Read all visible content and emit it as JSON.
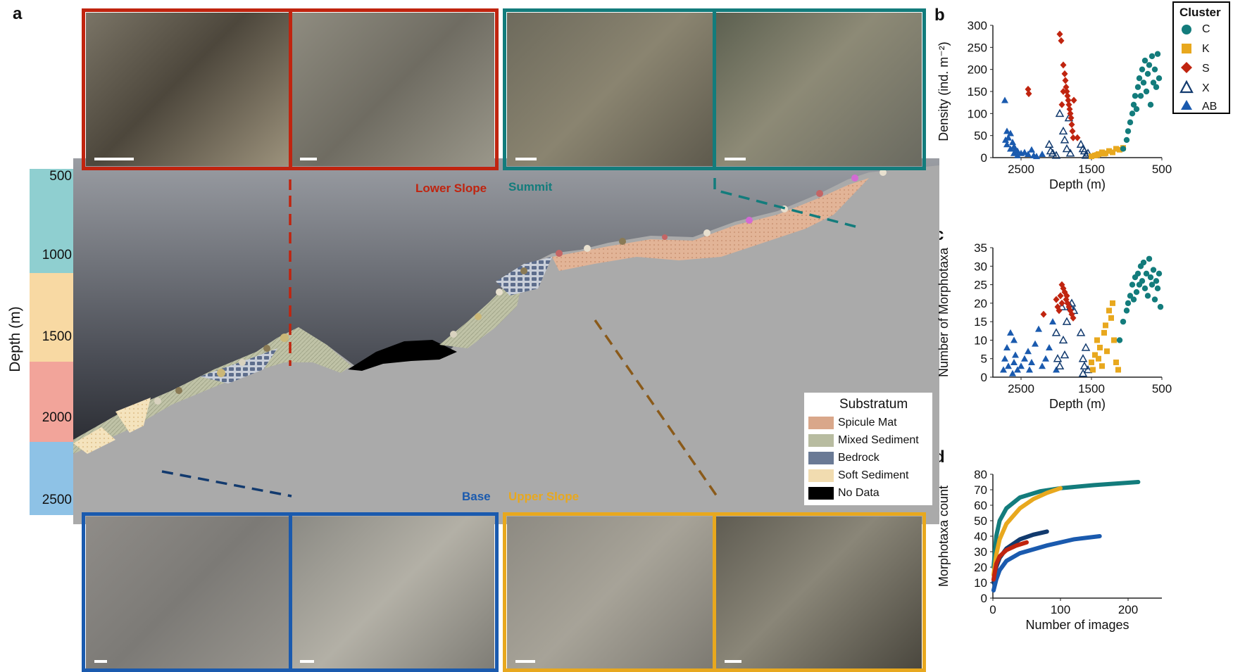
{
  "panels": {
    "a": "a",
    "b": "b",
    "c": "c",
    "d": "d"
  },
  "depth_axis": {
    "label": "Depth (m)",
    "ticks": [
      "500",
      "1000",
      "1500",
      "2000",
      "2500"
    ]
  },
  "regions": {
    "lower_slope": "Lower Slope",
    "summit": "Summit",
    "base": "Base",
    "upper_slope": "Upper Slope"
  },
  "colors": {
    "lower_slope": "#c0240f",
    "summit": "#137c7c",
    "base": "#1a5aae",
    "upper_slope": "#e8a81e",
    "band_summit": "#8fcfd0",
    "band_upper": "#f8d9a3",
    "band_lower": "#f2a49a",
    "band_base": "#8ec2e6"
  },
  "substratum_legend": {
    "title": "Substratum",
    "items": [
      {
        "label": "Spicule Mat",
        "color": "#d9a78a"
      },
      {
        "label": "Mixed Sediment",
        "color": "#b8bca0"
      },
      {
        "label": "Bedrock",
        "color": "#6a7a95"
      },
      {
        "label": "Soft Sediment",
        "color": "#f1dcb0"
      },
      {
        "label": "No Data",
        "color": "#000000"
      }
    ]
  },
  "cluster_legend": {
    "title": "Cluster",
    "items": [
      {
        "label": "C",
        "color": "#137c7c",
        "shape": "circle"
      },
      {
        "label": "K",
        "color": "#e8a81e",
        "shape": "square"
      },
      {
        "label": "S",
        "color": "#c0240f",
        "shape": "diamond"
      },
      {
        "label": "X",
        "color": "#123a6e",
        "shape": "triangle-open"
      },
      {
        "label": "AB",
        "color": "#1a5aae",
        "shape": "triangle"
      }
    ]
  },
  "chart_data": [
    {
      "panel": "b",
      "type": "scatter",
      "xlabel": "Depth (m)",
      "ylabel": "Density (ind. m⁻²)",
      "xlim": [
        2900,
        500
      ],
      "ylim": [
        0,
        300
      ],
      "xticks": [
        2500,
        1500,
        500
      ],
      "yticks": [
        0,
        50,
        100,
        150,
        200,
        250,
        300
      ],
      "series": [
        {
          "name": "AB",
          "points": [
            [
              2730,
              130
            ],
            [
              2720,
              40
            ],
            [
              2700,
              30
            ],
            [
              2680,
              45
            ],
            [
              2650,
              55
            ],
            [
              2620,
              35
            ],
            [
              2600,
              25
            ],
            [
              2580,
              20
            ],
            [
              2550,
              15
            ],
            [
              2500,
              10
            ],
            [
              2450,
              12
            ],
            [
              2400,
              8
            ],
            [
              2350,
              18
            ],
            [
              2320,
              5
            ],
            [
              2280,
              3
            ],
            [
              2700,
              60
            ],
            [
              2650,
              20
            ],
            [
              2600,
              10
            ],
            [
              2550,
              5
            ],
            [
              2200,
              8
            ]
          ]
        },
        {
          "name": "X",
          "points": [
            [
              2100,
              30
            ],
            [
              2080,
              15
            ],
            [
              2050,
              10
            ],
            [
              2000,
              5
            ],
            [
              1950,
              100
            ],
            [
              1900,
              60
            ],
            [
              1880,
              40
            ],
            [
              1850,
              20
            ],
            [
              1820,
              90
            ],
            [
              1800,
              10
            ],
            [
              1650,
              30
            ],
            [
              1600,
              15
            ],
            [
              1580,
              5
            ],
            [
              1550,
              10
            ],
            [
              1620,
              20
            ]
          ]
        },
        {
          "name": "S",
          "points": [
            [
              2400,
              155
            ],
            [
              2390,
              145
            ],
            [
              1950,
              280
            ],
            [
              1930,
              265
            ],
            [
              1900,
              210
            ],
            [
              1880,
              190
            ],
            [
              1870,
              175
            ],
            [
              1860,
              160
            ],
            [
              1850,
              150
            ],
            [
              1840,
              140
            ],
            [
              1830,
              130
            ],
            [
              1820,
              120
            ],
            [
              1810,
              110
            ],
            [
              1800,
              100
            ],
            [
              1790,
              90
            ],
            [
              1780,
              75
            ],
            [
              1770,
              60
            ],
            [
              1760,
              45
            ],
            [
              1750,
              130
            ],
            [
              1900,
              150
            ],
            [
              1920,
              120
            ],
            [
              1700,
              45
            ]
          ]
        },
        {
          "name": "K",
          "points": [
            [
              1450,
              5
            ],
            [
              1400,
              8
            ],
            [
              1350,
              12
            ],
            [
              1300,
              10
            ],
            [
              1250,
              15
            ],
            [
              1200,
              12
            ],
            [
              1150,
              20
            ],
            [
              1100,
              18
            ],
            [
              1050,
              22
            ],
            [
              1500,
              3
            ],
            [
              1420,
              6
            ],
            [
              1320,
              9
            ]
          ]
        },
        {
          "name": "C",
          "points": [
            [
              1050,
              20
            ],
            [
              1000,
              40
            ],
            [
              980,
              60
            ],
            [
              950,
              80
            ],
            [
              920,
              100
            ],
            [
              900,
              120
            ],
            [
              880,
              140
            ],
            [
              860,
              110
            ],
            [
              840,
              160
            ],
            [
              820,
              180
            ],
            [
              800,
              140
            ],
            [
              780,
              200
            ],
            [
              760,
              170
            ],
            [
              740,
              220
            ],
            [
              720,
              150
            ],
            [
              700,
              190
            ],
            [
              680,
              210
            ],
            [
              660,
              120
            ],
            [
              640,
              230
            ],
            [
              620,
              170
            ],
            [
              600,
              200
            ],
            [
              580,
              160
            ],
            [
              560,
              235
            ],
            [
              540,
              180
            ]
          ]
        }
      ]
    },
    {
      "panel": "c",
      "type": "scatter",
      "xlabel": "Depth (m)",
      "ylabel": "Number of Morphotaxa",
      "xlim": [
        2900,
        500
      ],
      "ylim": [
        0,
        35
      ],
      "xticks": [
        2500,
        1500,
        500
      ],
      "yticks": [
        0,
        5,
        10,
        15,
        20,
        25,
        30,
        35
      ],
      "series": [
        {
          "name": "AB",
          "points": [
            [
              2750,
              2
            ],
            [
              2730,
              5
            ],
            [
              2700,
              8
            ],
            [
              2680,
              3
            ],
            [
              2650,
              12
            ],
            [
              2620,
              1
            ],
            [
              2600,
              4
            ],
            [
              2580,
              6
            ],
            [
              2550,
              2
            ],
            [
              2500,
              3
            ],
            [
              2450,
              5
            ],
            [
              2400,
              7
            ],
            [
              2380,
              2
            ],
            [
              2350,
              4
            ],
            [
              2300,
              9
            ],
            [
              2250,
              13
            ],
            [
              2200,
              3
            ],
            [
              2150,
              5
            ],
            [
              2100,
              8
            ],
            [
              2050,
              15
            ],
            [
              2000,
              2
            ],
            [
              2600,
              10
            ]
          ]
        },
        {
          "name": "X",
          "points": [
            [
              2000,
              12
            ],
            [
              1980,
              5
            ],
            [
              1950,
              3
            ],
            [
              1920,
              19
            ],
            [
              1900,
              10
            ],
            [
              1880,
              6
            ],
            [
              1850,
              15
            ],
            [
              1800,
              19
            ],
            [
              1780,
              20
            ],
            [
              1750,
              18
            ],
            [
              1650,
              12
            ],
            [
              1620,
              5
            ],
            [
              1600,
              3
            ],
            [
              1580,
              8
            ],
            [
              1550,
              2
            ],
            [
              1620,
              1
            ]
          ]
        },
        {
          "name": "S",
          "points": [
            [
              2180,
              17
            ],
            [
              2000,
              21
            ],
            [
              1980,
              19
            ],
            [
              1960,
              18
            ],
            [
              1940,
              22
            ],
            [
              1920,
              20
            ],
            [
              1900,
              24
            ],
            [
              1880,
              23
            ],
            [
              1860,
              21
            ],
            [
              1840,
              20
            ],
            [
              1820,
              19
            ],
            [
              1800,
              18
            ],
            [
              1780,
              17
            ],
            [
              1760,
              16
            ],
            [
              1920,
              25
            ],
            [
              1850,
              22
            ]
          ]
        },
        {
          "name": "K",
          "points": [
            [
              1500,
              4
            ],
            [
              1480,
              2
            ],
            [
              1450,
              6
            ],
            [
              1420,
              10
            ],
            [
              1400,
              5
            ],
            [
              1380,
              8
            ],
            [
              1350,
              3
            ],
            [
              1320,
              12
            ],
            [
              1300,
              14
            ],
            [
              1280,
              7
            ],
            [
              1250,
              18
            ],
            [
              1220,
              16
            ],
            [
              1200,
              20
            ],
            [
              1180,
              10
            ],
            [
              1150,
              4
            ],
            [
              1120,
              2
            ]
          ]
        },
        {
          "name": "C",
          "points": [
            [
              1100,
              10
            ],
            [
              1050,
              15
            ],
            [
              1000,
              18
            ],
            [
              980,
              20
            ],
            [
              950,
              22
            ],
            [
              920,
              25
            ],
            [
              900,
              21
            ],
            [
              880,
              27
            ],
            [
              860,
              23
            ],
            [
              840,
              28
            ],
            [
              820,
              25
            ],
            [
              800,
              30
            ],
            [
              780,
              26
            ],
            [
              760,
              31
            ],
            [
              740,
              24
            ],
            [
              720,
              28
            ],
            [
              700,
              22
            ],
            [
              680,
              32
            ],
            [
              660,
              27
            ],
            [
              640,
              25
            ],
            [
              620,
              29
            ],
            [
              600,
              21
            ],
            [
              580,
              26
            ],
            [
              560,
              24
            ],
            [
              540,
              28
            ],
            [
              520,
              19
            ]
          ]
        }
      ]
    },
    {
      "panel": "d",
      "type": "line",
      "xlabel": "Number of images",
      "ylabel": "Morphotaxa count",
      "xlim": [
        0,
        250
      ],
      "ylim": [
        0,
        80
      ],
      "xticks": [
        0,
        100,
        200
      ],
      "yticks": [
        0,
        10,
        20,
        30,
        40,
        50,
        60,
        70,
        80
      ],
      "series": [
        {
          "name": "C",
          "points": [
            [
              1,
              20
            ],
            [
              5,
              40
            ],
            [
              10,
              50
            ],
            [
              20,
              58
            ],
            [
              40,
              65
            ],
            [
              70,
              69
            ],
            [
              100,
              71
            ],
            [
              150,
              73
            ],
            [
              215,
              75
            ]
          ]
        },
        {
          "name": "K",
          "points": [
            [
              1,
              15
            ],
            [
              5,
              28
            ],
            [
              10,
              38
            ],
            [
              20,
              48
            ],
            [
              40,
              58
            ],
            [
              60,
              64
            ],
            [
              80,
              68
            ],
            [
              100,
              71
            ]
          ]
        },
        {
          "name": "X",
          "points": [
            [
              1,
              10
            ],
            [
              5,
              20
            ],
            [
              10,
              26
            ],
            [
              20,
              32
            ],
            [
              40,
              38
            ],
            [
              60,
              41
            ],
            [
              80,
              43
            ]
          ]
        },
        {
          "name": "AB",
          "points": [
            [
              1,
              5
            ],
            [
              5,
              12
            ],
            [
              10,
              18
            ],
            [
              20,
              24
            ],
            [
              40,
              29
            ],
            [
              80,
              34
            ],
            [
              120,
              38
            ],
            [
              158,
              40
            ]
          ]
        },
        {
          "name": "S",
          "points": [
            [
              1,
              12
            ],
            [
              5,
              22
            ],
            [
              10,
              27
            ],
            [
              20,
              31
            ],
            [
              35,
              34
            ],
            [
              50,
              36
            ]
          ]
        }
      ]
    }
  ]
}
